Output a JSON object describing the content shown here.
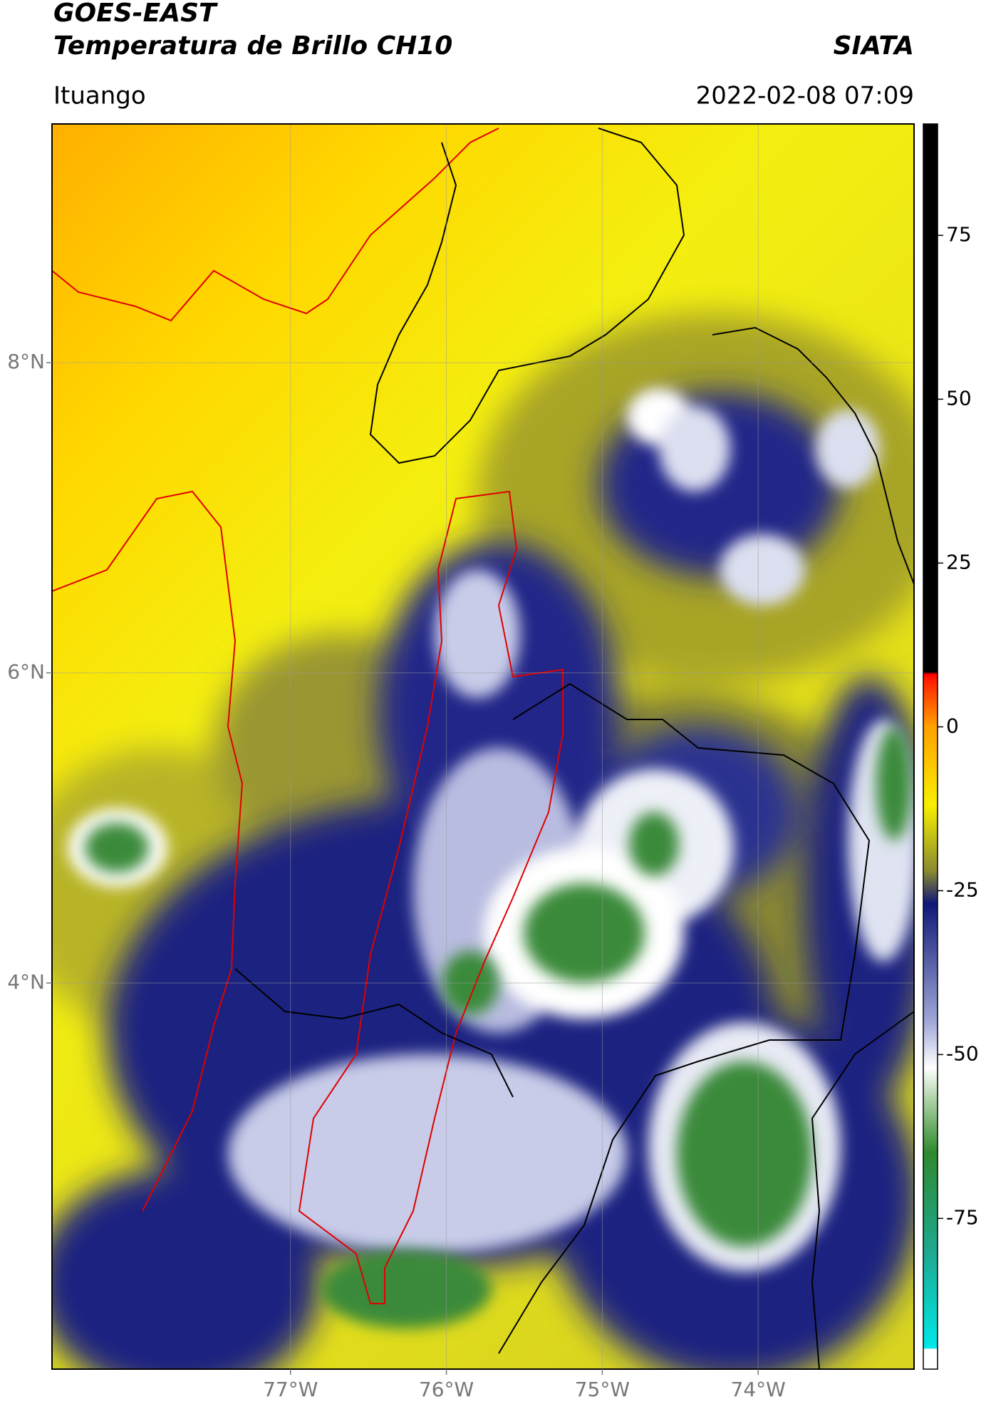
{
  "chart_data": {
    "type": "map",
    "title": "GOES-EAST",
    "subtitle": "Temperatura de Brillo CH10",
    "source": "SIATA",
    "location": "Ituango",
    "datetime": "2022-02-08 07:09",
    "xlim": [
      -78.53,
      -73.0
    ],
    "ylim": [
      1.51,
      9.54
    ],
    "xticks": [
      {
        "value": -77,
        "label": "77°W"
      },
      {
        "value": -76,
        "label": "76°W"
      },
      {
        "value": -75,
        "label": "75°W"
      },
      {
        "value": -74,
        "label": "74°W"
      }
    ],
    "yticks": [
      {
        "value": 8,
        "label": "8°N"
      },
      {
        "value": 6,
        "label": "6°N"
      },
      {
        "value": 4,
        "label": "4°N"
      }
    ],
    "grid": true,
    "colorbar": {
      "lim": [
        -98,
        92
      ],
      "ticks": [
        75,
        50,
        25,
        0,
        -25,
        -50,
        -75
      ]
    }
  }
}
